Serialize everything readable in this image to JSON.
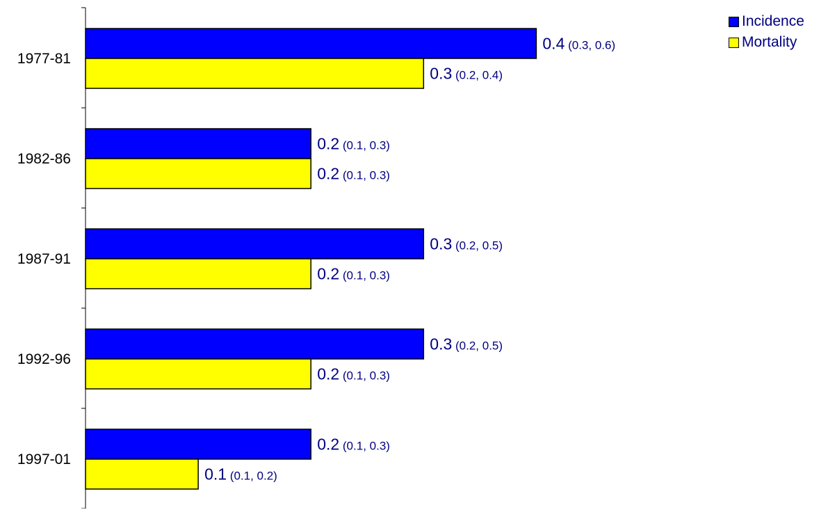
{
  "chart_data": {
    "type": "bar",
    "orientation": "horizontal",
    "categories": [
      "1977-81",
      "1982-86",
      "1987-91",
      "1992-96",
      "1997-01"
    ],
    "series": [
      {
        "name": "Incidence",
        "color": "#0000FF",
        "values": [
          0.4,
          0.2,
          0.3,
          0.3,
          0.2
        ],
        "bar_values": [
          0.4,
          0.2,
          0.3,
          0.3,
          0.2
        ],
        "labels": [
          "0.4",
          "0.2",
          "0.3",
          "0.3",
          "0.2"
        ],
        "ci_labels": [
          "(0.3, 0.6)",
          "(0.1, 0.3)",
          "(0.2, 0.5)",
          "(0.2, 0.5)",
          "(0.1, 0.3)"
        ]
      },
      {
        "name": "Mortality",
        "color": "#FFFF00",
        "values": [
          0.3,
          0.2,
          0.2,
          0.2,
          0.1
        ],
        "bar_values": [
          0.3,
          0.2,
          0.2,
          0.2,
          0.1
        ],
        "labels": [
          "0.3",
          "0.2",
          "0.2",
          "0.2",
          "0.1"
        ],
        "ci_labels": [
          "(0.2, 0.4)",
          "(0.1, 0.3)",
          "(0.1, 0.3)",
          "(0.1, 0.3)",
          "(0.1, 0.2)"
        ]
      }
    ],
    "title": "",
    "xlabel": "",
    "ylabel": "",
    "xlim": [
      0,
      0.4
    ],
    "grid": false,
    "legend_position": "top-right",
    "label_color": "#000080"
  }
}
